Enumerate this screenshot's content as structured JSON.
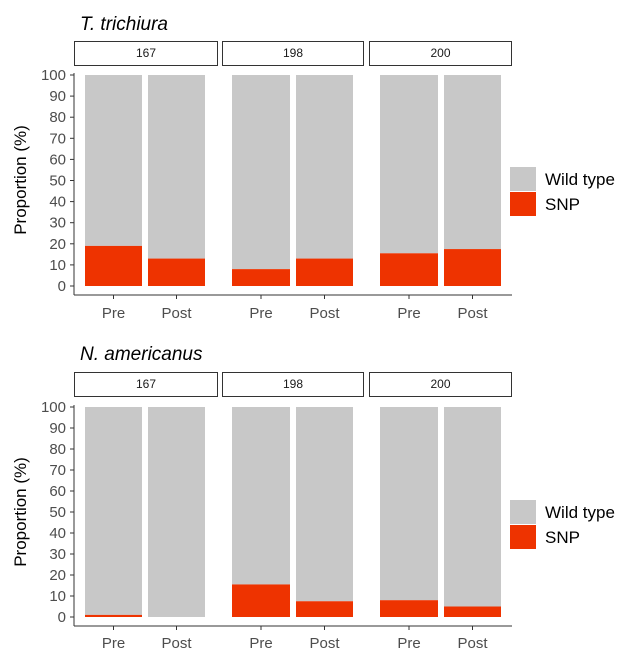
{
  "chart_data": [
    {
      "type": "bar",
      "stacked": true,
      "title": "T. trichiura",
      "ylabel": "Proportion (%)",
      "ylim": [
        0,
        100
      ],
      "yticks": [
        0,
        10,
        20,
        30,
        40,
        50,
        60,
        70,
        80,
        90,
        100
      ],
      "categories": [
        "Pre",
        "Post"
      ],
      "facets": [
        {
          "label": "167",
          "series": [
            {
              "name": "SNP",
              "values": [
                19,
                13
              ]
            },
            {
              "name": "Wild type",
              "values": [
                81,
                87
              ]
            }
          ]
        },
        {
          "label": "198",
          "series": [
            {
              "name": "SNP",
              "values": [
                8,
                13
              ]
            },
            {
              "name": "Wild type",
              "values": [
                92,
                87
              ]
            }
          ]
        },
        {
          "label": "200",
          "series": [
            {
              "name": "SNP",
              "values": [
                15.5,
                17.5
              ]
            },
            {
              "name": "Wild type",
              "values": [
                84.5,
                82.5
              ]
            }
          ]
        }
      ],
      "legend": {
        "position": "right",
        "entries": [
          {
            "name": "Wild type",
            "color": "#c8c8c8"
          },
          {
            "name": "SNP",
            "color": "#ee3300"
          }
        ]
      }
    },
    {
      "type": "bar",
      "stacked": true,
      "title": "N. americanus",
      "ylabel": "Proportion (%)",
      "ylim": [
        0,
        100
      ],
      "yticks": [
        0,
        10,
        20,
        30,
        40,
        50,
        60,
        70,
        80,
        90,
        100
      ],
      "categories": [
        "Pre",
        "Post"
      ],
      "facets": [
        {
          "label": "167",
          "series": [
            {
              "name": "SNP",
              "values": [
                1,
                0
              ]
            },
            {
              "name": "Wild type",
              "values": [
                99,
                100
              ]
            }
          ]
        },
        {
          "label": "198",
          "series": [
            {
              "name": "SNP",
              "values": [
                15.5,
                7.5
              ]
            },
            {
              "name": "Wild type",
              "values": [
                84.5,
                92.5
              ]
            }
          ]
        },
        {
          "label": "200",
          "series": [
            {
              "name": "SNP",
              "values": [
                8,
                5
              ]
            },
            {
              "name": "Wild type",
              "values": [
                92,
                95
              ]
            }
          ]
        }
      ],
      "legend": {
        "position": "right",
        "entries": [
          {
            "name": "Wild type",
            "color": "#c8c8c8"
          },
          {
            "name": "SNP",
            "color": "#ee3300"
          }
        ]
      }
    }
  ]
}
